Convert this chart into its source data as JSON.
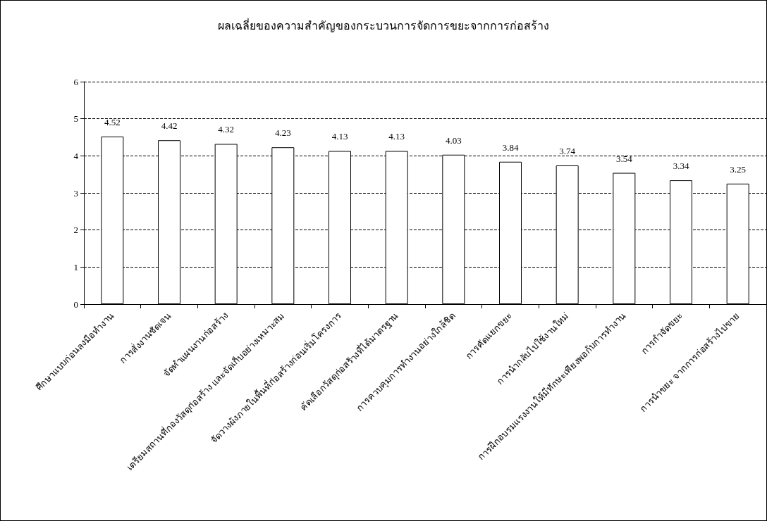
{
  "chart_data": {
    "type": "bar",
    "title": "ผลเฉลี่ยของความสำคัญของกระบวนการจัดการขยะจากการก่อสร้าง",
    "categories": [
      "ศึกษาแบบก่อนลงมือทำงาน",
      "การสั่งงานชัดเจน",
      "จัดทำแผนงานก่อสร้าง",
      "เตรียมสถานที่กองวัสดุก่อสร้าง และจัดเก็บอย่างเหมาะสม",
      "จัดวางผังภายในพื้นที่ก่อสร้างก่อนเริ่มโครงการ",
      "คัดเลือกวัสดุก่อสร้างที่ได้มาตรฐาน",
      "การควบคุมการทำงานอย่างใกล้ชิด",
      "การคัดแยกขยะ",
      "การนำกลับไปใช้งานใหม่",
      "การฝึกอบรมแรงงานให้มีทักษะเพียงพอกับการทำงาน",
      "การกำจัดขยะ",
      "การนำขยะ จากการก่อสร้างไปขาย"
    ],
    "values": [
      4.52,
      4.42,
      4.32,
      4.23,
      4.13,
      4.13,
      4.03,
      3.84,
      3.74,
      3.54,
      3.34,
      3.25
    ],
    "color": "#ffffff",
    "ylim": [
      0,
      6
    ],
    "yticks": [
      0,
      1,
      2,
      3,
      4,
      5,
      6
    ],
    "grid": "y",
    "data_labels": true
  }
}
